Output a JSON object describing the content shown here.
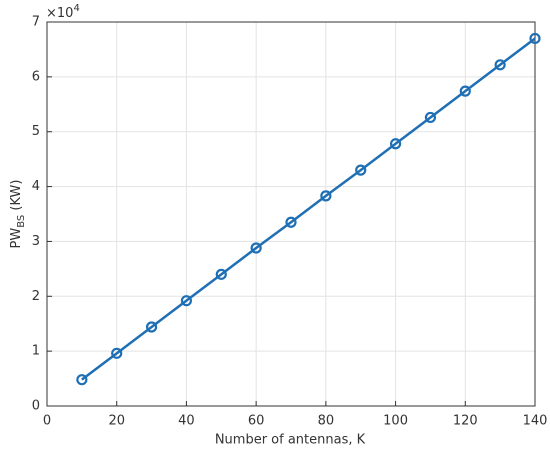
{
  "chart_data": {
    "type": "line",
    "xlabel": "Number of antennas, K",
    "ylabel": {
      "main": "PW",
      "sub": "BS",
      "unit": " (KW)"
    },
    "y_multiplier": {
      "base": "×10",
      "exponent": "4"
    },
    "x": [
      10,
      20,
      30,
      40,
      50,
      60,
      70,
      80,
      90,
      100,
      110,
      120,
      130,
      140
    ],
    "values": [
      0.48,
      0.96,
      1.44,
      1.92,
      2.4,
      2.88,
      3.35,
      3.83,
      4.3,
      4.78,
      5.26,
      5.74,
      6.22,
      6.7
    ],
    "color": "#1f6fb5",
    "xlim": [
      0,
      140
    ],
    "xticks": [
      0,
      20,
      40,
      60,
      80,
      100,
      120,
      140
    ],
    "ylim": [
      0,
      7
    ],
    "yticks": [
      0,
      1,
      2,
      3,
      4,
      5,
      6,
      7
    ],
    "grid": true
  }
}
